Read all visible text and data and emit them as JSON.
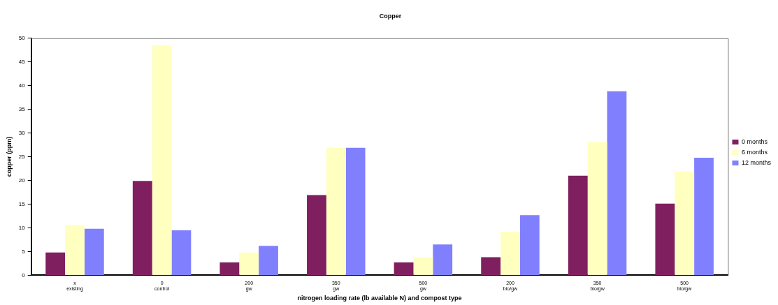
{
  "chart_data": {
    "type": "bar",
    "title": "Copper",
    "xlabel": "nitrogen loading rate (lb available N) and compost type",
    "ylabel": "copper (ppm)",
    "categories": [
      "x\nexisting",
      "0\ncontrol",
      "200\ngw",
      "350\ngw",
      "500\ngw",
      "200\nbio/gw",
      "350\nbio/gw",
      "500\nbio/gw"
    ],
    "series": [
      {
        "name": "0 months",
        "color": "#7f1f5f",
        "values": [
          4.8,
          19.9,
          2.7,
          16.9,
          2.7,
          3.8,
          21.0,
          15.1
        ]
      },
      {
        "name": "6 months",
        "color": "#ffffc0",
        "values": [
          10.6,
          48.5,
          4.8,
          26.9,
          3.8,
          9.2,
          28.1,
          21.9
        ]
      },
      {
        "name": "12 months",
        "color": "#8080ff",
        "values": [
          9.8,
          9.5,
          6.2,
          26.9,
          6.5,
          12.7,
          38.8,
          24.8
        ]
      }
    ],
    "ylim": [
      0,
      50
    ],
    "yticks": [
      0,
      5,
      10,
      15,
      20,
      25,
      30,
      35,
      40,
      45,
      50
    ],
    "grid": false,
    "legend": "right"
  }
}
